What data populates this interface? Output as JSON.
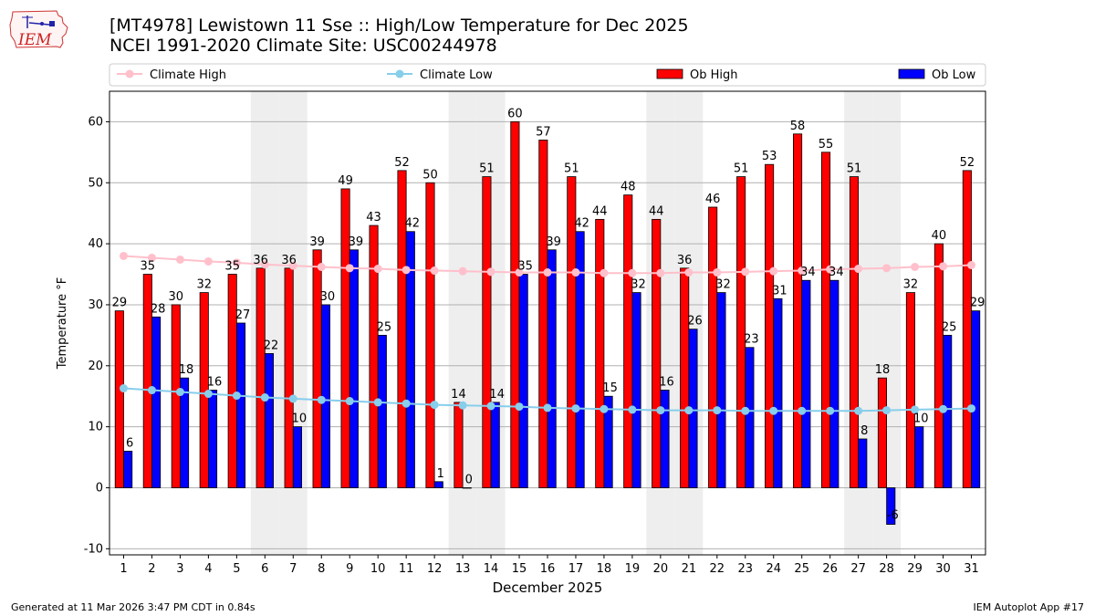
{
  "header": {
    "title_line1": "[MT4978] Lewistown 11 Sse :: High/Low Temperature for Dec 2025",
    "title_line2": "NCEI 1991-2020 Climate Site: USC00244978"
  },
  "logo": {
    "text": "IEM",
    "icon": "iem-iowa-logo-icon"
  },
  "footer": {
    "generated": "Generated at 11 Mar 2026 3:47 PM CDT in 0.84s",
    "app": "IEM Autoplot App #17"
  },
  "colors": {
    "ob_high": "#ff0000",
    "ob_low": "#0000ff",
    "climate_high": "#ffc0cb",
    "climate_low": "#87ceeb",
    "weekend_shade": "#eeeeee",
    "grid": "#b0b0b0"
  },
  "chart_data": {
    "type": "bar",
    "title": "[MT4978] Lewistown 11 Sse :: High/Low Temperature for Dec 2025",
    "xlabel": "December 2025",
    "ylabel": "Temperature °F",
    "ylim": [
      -11,
      65
    ],
    "yticks": [
      -10,
      0,
      10,
      20,
      30,
      40,
      50,
      60
    ],
    "grid": true,
    "legend_position": "top",
    "categories": [
      "1",
      "2",
      "3",
      "4",
      "5",
      "6",
      "7",
      "8",
      "9",
      "10",
      "11",
      "12",
      "13",
      "14",
      "15",
      "16",
      "17",
      "18",
      "19",
      "20",
      "21",
      "22",
      "23",
      "24",
      "25",
      "26",
      "27",
      "28",
      "29",
      "30",
      "31"
    ],
    "shaded_days": [
      6,
      7,
      13,
      14,
      20,
      21,
      27,
      28
    ],
    "series": [
      {
        "name": "Ob High",
        "kind": "bar",
        "values": [
          29,
          35,
          30,
          32,
          35,
          36,
          36,
          39,
          49,
          43,
          52,
          50,
          14,
          51,
          60,
          57,
          51,
          44,
          48,
          44,
          36,
          46,
          51,
          53,
          58,
          55,
          51,
          18,
          32,
          40,
          52
        ]
      },
      {
        "name": "Ob Low",
        "kind": "bar",
        "values": [
          6,
          28,
          18,
          16,
          27,
          22,
          10,
          30,
          39,
          25,
          42,
          1,
          0,
          14,
          35,
          39,
          42,
          15,
          32,
          16,
          26,
          32,
          23,
          31,
          34,
          34,
          8,
          -6,
          10,
          25,
          29
        ]
      },
      {
        "name": "Climate High",
        "kind": "line",
        "values": [
          38.0,
          37.7,
          37.4,
          37.1,
          36.9,
          36.6,
          36.4,
          36.2,
          36.0,
          35.9,
          35.7,
          35.6,
          35.5,
          35.4,
          35.3,
          35.3,
          35.3,
          35.2,
          35.2,
          35.2,
          35.3,
          35.3,
          35.4,
          35.5,
          35.6,
          35.8,
          35.9,
          36.0,
          36.2,
          36.3,
          36.5
        ]
      },
      {
        "name": "Climate Low",
        "kind": "line",
        "values": [
          16.3,
          16.0,
          15.7,
          15.4,
          15.1,
          14.8,
          14.6,
          14.4,
          14.2,
          14.0,
          13.8,
          13.6,
          13.5,
          13.4,
          13.3,
          13.1,
          13.0,
          12.9,
          12.8,
          12.7,
          12.7,
          12.7,
          12.6,
          12.6,
          12.6,
          12.6,
          12.6,
          12.7,
          12.8,
          12.9,
          13.0
        ]
      }
    ]
  }
}
